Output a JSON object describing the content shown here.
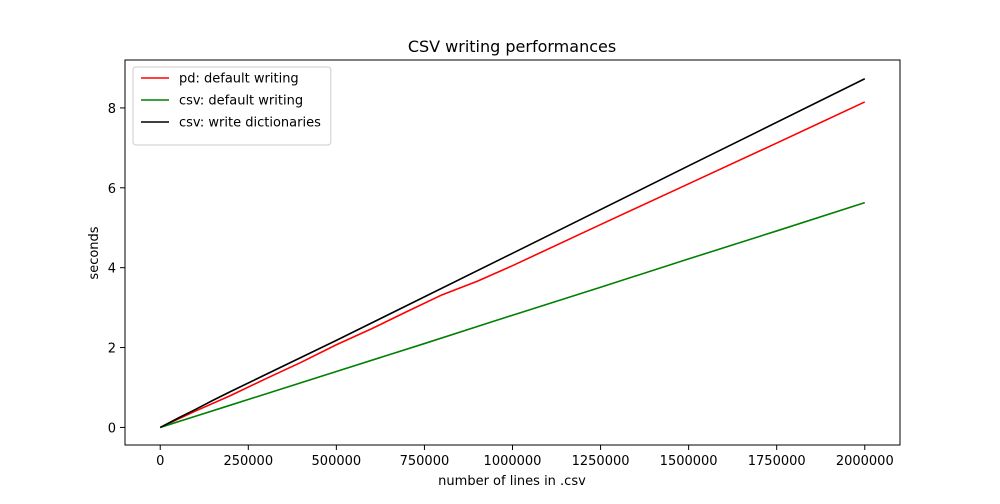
{
  "chart_data": {
    "type": "line",
    "title": "CSV writing performances",
    "xlabel": "number of lines in .csv",
    "ylabel": "seconds",
    "xlim": [
      -100000,
      2100000
    ],
    "ylim": [
      -0.44,
      9.2
    ],
    "x_ticks": [
      0,
      250000,
      500000,
      750000,
      1000000,
      1250000,
      1500000,
      1750000,
      2000000
    ],
    "x_tick_labels": [
      "0",
      "250000",
      "500000",
      "750000",
      "1000000",
      "1250000",
      "1500000",
      "1750000",
      "2000000"
    ],
    "y_ticks": [
      0,
      2,
      4,
      6,
      8
    ],
    "y_tick_labels": [
      "0",
      "2",
      "4",
      "6",
      "8"
    ],
    "grid": false,
    "legend_position": "top-left",
    "series": [
      {
        "name": "pd: default writing",
        "color": "#ff0000",
        "x": [
          0,
          100000,
          200000,
          300000,
          400000,
          500000,
          600000,
          700000,
          800000,
          900000,
          1000000,
          1250000,
          1500000,
          1750000,
          2000000
        ],
        "y": [
          0,
          0.41,
          0.8,
          1.22,
          1.63,
          2.07,
          2.47,
          2.9,
          3.32,
          3.66,
          4.05,
          5.08,
          6.1,
          7.12,
          8.15
        ]
      },
      {
        "name": "csv: default writing",
        "color": "#008000",
        "x": [
          0,
          100000,
          200000,
          500000,
          750000,
          1000000,
          1250000,
          1500000,
          1750000,
          2000000
        ],
        "y": [
          0,
          0.28,
          0.56,
          1.4,
          2.1,
          2.81,
          3.51,
          4.22,
          4.92,
          5.63
        ]
      },
      {
        "name": "csv: write dictionaries",
        "color": "#000000",
        "x": [
          0,
          50000,
          100000,
          150000,
          200000,
          500000,
          1000000,
          1500000,
          2000000
        ],
        "y": [
          0,
          0.23,
          0.45,
          0.68,
          0.9,
          2.18,
          4.36,
          6.55,
          8.73
        ]
      }
    ]
  }
}
